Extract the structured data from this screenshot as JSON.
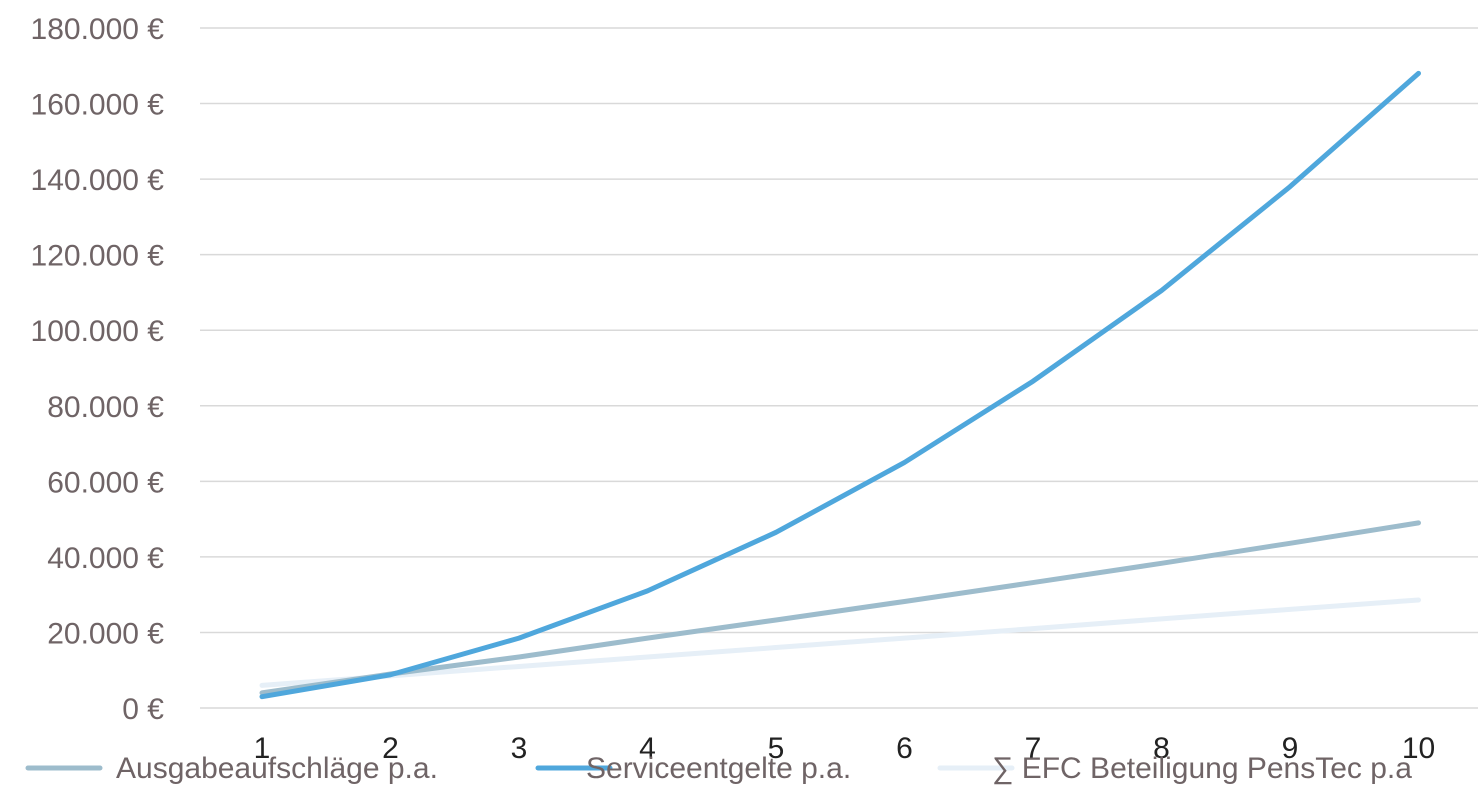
{
  "chart_data": {
    "type": "line",
    "categories": [
      "1",
      "2",
      "3",
      "4",
      "5",
      "6",
      "7",
      "8",
      "9",
      "10"
    ],
    "y_tick_labels": [
      "0 €",
      "20.000 €",
      "40.000 €",
      "60.000 €",
      "80.000 €",
      "100.000 €",
      "120.000 €",
      "140.000 €",
      "160.000 €",
      "180.000 €"
    ],
    "ylim": [
      0,
      180000
    ],
    "grid": true,
    "legend_position": "bottom",
    "series": [
      {
        "name": "Ausgabeaufschläge p.a.",
        "color": "#9dbccc",
        "values": [
          4000,
          9000,
          13500,
          18500,
          23300,
          28200,
          33200,
          38300,
          43600,
          49000
        ]
      },
      {
        "name": "Serviceentgelte p.a.",
        "color": "#4fa7dc",
        "values": [
          3000,
          8800,
          18500,
          31000,
          46500,
          65000,
          86500,
          110500,
          138000,
          168000
        ]
      },
      {
        "name": "∑ EFC Beteiligung PensTec  p.a",
        "color": "#e6eff7",
        "values": [
          6000,
          8500,
          11000,
          13500,
          16000,
          18500,
          21000,
          23600,
          26100,
          28600
        ]
      }
    ]
  }
}
